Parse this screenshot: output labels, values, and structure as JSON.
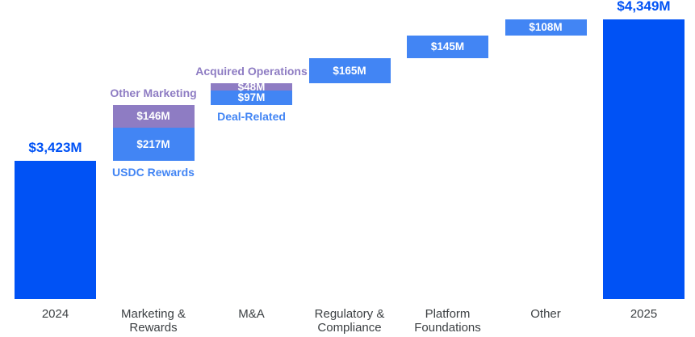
{
  "chart_data": {
    "type": "waterfall",
    "unit": "$M",
    "grid": false,
    "legend": "none",
    "background": "#ffffff",
    "colors": {
      "total_bar": "#0052f5",
      "step_bar_blue": "#4285f4",
      "step_bar_purple": "#8e7cc3",
      "total_label_text": "#0052f5",
      "callout_blue_text": "#4285f4",
      "callout_purple_text": "#8e7cc3",
      "bar_value_text": "#ffffff",
      "axis_label_text": "#3c4043"
    },
    "columns": [
      {
        "kind": "total",
        "axis_label": "2024",
        "value": 3423,
        "value_label": "$3,423M"
      },
      {
        "kind": "step",
        "axis_label": "Marketing &\nRewards",
        "segments": [
          {
            "name": "USDC Rewards",
            "value": 217,
            "value_label": "$217M",
            "color": "blue",
            "callout": {
              "text": "USDC Rewards",
              "position": "below",
              "color": "blue"
            }
          },
          {
            "name": "Other Marketing",
            "value": 146,
            "value_label": "$146M",
            "color": "purple",
            "callout": {
              "text": "Other Marketing",
              "position": "above",
              "color": "purple"
            }
          }
        ]
      },
      {
        "kind": "step",
        "axis_label": "M&A",
        "segments": [
          {
            "name": "Deal-Related",
            "value": 97,
            "value_label": "$97M",
            "color": "blue",
            "callout": {
              "text": "Deal-Related",
              "position": "below",
              "color": "blue"
            }
          },
          {
            "name": "Acquired Operations",
            "value": 48,
            "value_label": "$48M",
            "color": "purple",
            "callout": {
              "text": "Acquired Operations",
              "position": "above",
              "color": "purple"
            }
          }
        ]
      },
      {
        "kind": "step",
        "axis_label": "Regulatory &\nCompliance",
        "segments": [
          {
            "name": "Regulatory & Compliance",
            "value": 165,
            "value_label": "$165M",
            "color": "blue"
          }
        ]
      },
      {
        "kind": "step",
        "axis_label": "Platform\nFoundations",
        "segments": [
          {
            "name": "Platform Foundations",
            "value": 145,
            "value_label": "$145M",
            "color": "blue"
          }
        ]
      },
      {
        "kind": "step",
        "axis_label": "Other",
        "segments": [
          {
            "name": "Other",
            "value": 108,
            "value_label": "$108M",
            "color": "blue"
          }
        ]
      },
      {
        "kind": "total",
        "axis_label": "2025",
        "value": 4349,
        "value_label": "$4,349M"
      }
    ]
  }
}
